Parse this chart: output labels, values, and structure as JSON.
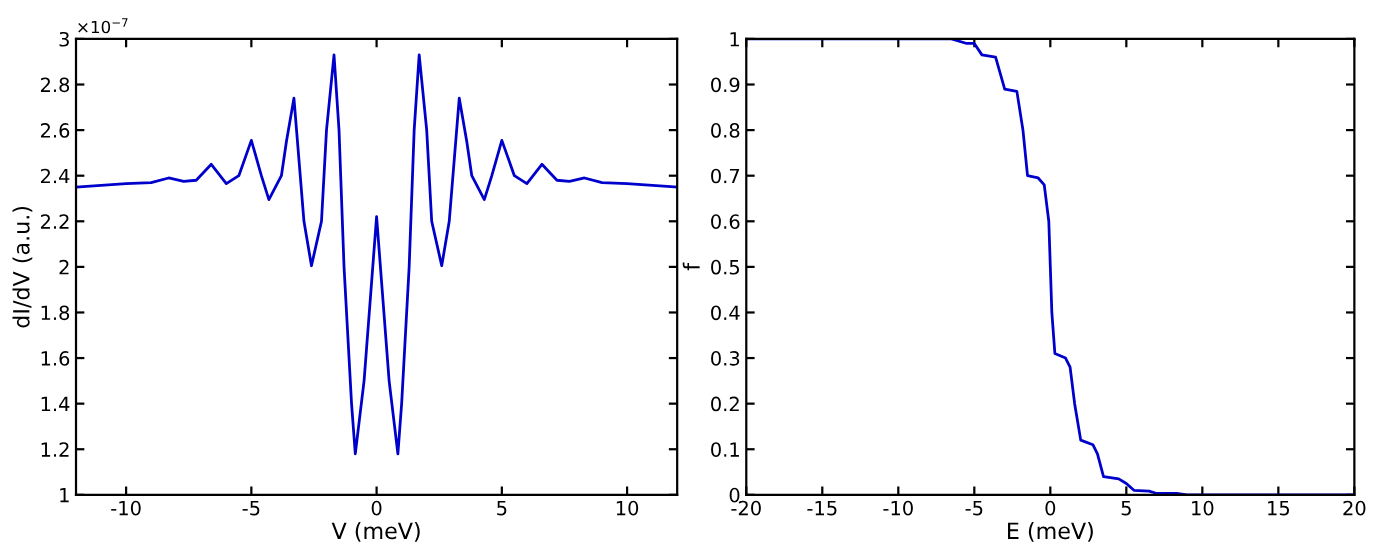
{
  "chart_data": [
    {
      "type": "line",
      "xlabel": "V (meV)",
      "ylabel": "dI/dV (a.u.)",
      "annotations": [
        "×10$^{−7}$"
      ],
      "xlim": [
        -12,
        12
      ],
      "xticks": [
        -10,
        -5,
        0,
        5,
        10
      ],
      "ylim": [
        1,
        3
      ],
      "yticks": [
        1,
        1.2,
        1.4,
        1.6,
        1.8,
        2,
        2.2,
        2.4,
        2.6,
        2.8,
        3
      ],
      "grid": false,
      "legend": false,
      "series": [
        {
          "color": "#0000cc",
          "x": [
            -12,
            -10,
            -9,
            -8.3,
            -7.7,
            -7.2,
            -6.6,
            -6,
            -5.5,
            -5,
            -4.6,
            -4.3,
            -3.8,
            -3.6,
            -3.3,
            -2.9,
            -2.6,
            -2.2,
            -2.0,
            -1.7,
            -1.5,
            -1.3,
            -1.0,
            -0.85,
            -0.5,
            0,
            0.5,
            0.85,
            1.0,
            1.3,
            1.5,
            1.7,
            2.0,
            2.2,
            2.6,
            2.9,
            3.3,
            3.6,
            3.8,
            4.3,
            4.6,
            5,
            5.5,
            6,
            6.6,
            7.2,
            7.7,
            8.3,
            9,
            10,
            12
          ],
          "values": [
            2.35,
            2.365,
            2.37,
            2.39,
            2.375,
            2.38,
            2.45,
            2.365,
            2.4,
            2.555,
            2.4,
            2.295,
            2.4,
            2.55,
            2.74,
            2.2,
            2.005,
            2.2,
            2.6,
            2.93,
            2.6,
            2.0,
            1.4,
            1.18,
            1.5,
            2.22,
            1.5,
            1.18,
            1.4,
            2.0,
            2.6,
            2.93,
            2.6,
            2.2,
            2.005,
            2.2,
            2.74,
            2.55,
            2.4,
            2.295,
            2.4,
            2.555,
            2.4,
            2.365,
            2.45,
            2.38,
            2.375,
            2.39,
            2.37,
            2.365,
            2.35
          ]
        }
      ]
    },
    {
      "type": "line",
      "xlabel": "E (meV)",
      "ylabel": "f",
      "xlim": [
        -20,
        20
      ],
      "xticks": [
        -20,
        -15,
        -10,
        -5,
        0,
        5,
        10,
        15,
        20
      ],
      "ylim": [
        0,
        1
      ],
      "yticks": [
        0,
        0.1,
        0.2,
        0.3,
        0.4,
        0.5,
        0.6,
        0.7,
        0.8,
        0.9,
        1
      ],
      "grid": false,
      "legend": false,
      "series": [
        {
          "color": "#0000cc",
          "x": [
            -20,
            -6.5,
            -5.5,
            -5,
            -4.5,
            -3.6,
            -3,
            -2.2,
            -1.8,
            -1.5,
            -0.8,
            -0.4,
            -0.1,
            0,
            0.1,
            0.3,
            1.0,
            1.3,
            1.6,
            2,
            2.8,
            3.1,
            3.5,
            4.5,
            5,
            5.5,
            6.5,
            7,
            8.3,
            9,
            20
          ],
          "values": [
            1,
            1,
            0.99,
            0.99,
            0.965,
            0.96,
            0.89,
            0.885,
            0.8,
            0.7,
            0.695,
            0.68,
            0.6,
            0.5,
            0.4,
            0.31,
            0.3,
            0.28,
            0.2,
            0.12,
            0.11,
            0.09,
            0.04,
            0.035,
            0.025,
            0.01,
            0.008,
            0.003,
            0.003,
            0,
            0
          ]
        }
      ]
    }
  ]
}
